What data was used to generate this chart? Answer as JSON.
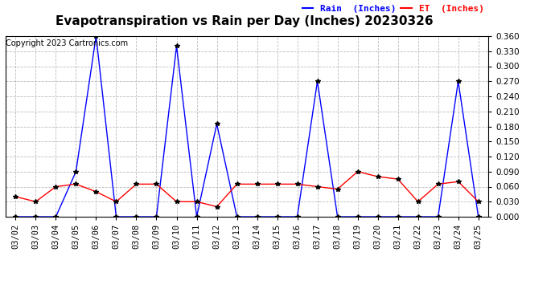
{
  "title": "Evapotranspiration vs Rain per Day (Inches) 20230326",
  "copyright": "Copyright 2023 Cartronics.com",
  "dates": [
    "03/02",
    "03/03",
    "03/04",
    "03/05",
    "03/06",
    "03/07",
    "03/08",
    "03/09",
    "03/10",
    "03/11",
    "03/12",
    "03/13",
    "03/14",
    "03/15",
    "03/16",
    "03/17",
    "03/18",
    "03/19",
    "03/20",
    "03/21",
    "03/22",
    "03/23",
    "03/24",
    "03/25"
  ],
  "rain": [
    0.0,
    0.0,
    0.0,
    0.09,
    0.36,
    0.0,
    0.0,
    0.0,
    0.34,
    0.0,
    0.185,
    0.0,
    0.0,
    0.0,
    0.0,
    0.27,
    0.0,
    0.0,
    0.0,
    0.0,
    0.0,
    0.0,
    0.27,
    0.0
  ],
  "et": [
    0.04,
    0.03,
    0.06,
    0.065,
    0.05,
    0.03,
    0.065,
    0.065,
    0.03,
    0.03,
    0.02,
    0.065,
    0.065,
    0.065,
    0.065,
    0.06,
    0.055,
    0.09,
    0.08,
    0.075,
    0.03,
    0.065,
    0.07,
    0.03
  ],
  "rain_color": "#0000ff",
  "et_color": "#ff0000",
  "marker_color": "#000000",
  "ylim": [
    0.0,
    0.36
  ],
  "yticks": [
    0.0,
    0.03,
    0.06,
    0.09,
    0.12,
    0.15,
    0.18,
    0.21,
    0.24,
    0.27,
    0.3,
    0.33,
    0.36
  ],
  "background_color": "#ffffff",
  "grid_color": "#bbbbbb",
  "title_fontsize": 11,
  "tick_fontsize": 7.5,
  "copyright_fontsize": 7,
  "legend_rain": "Rain  (Inches)",
  "legend_et": "ET  (Inches)",
  "legend_rain_color": "#0000ff",
  "legend_et_color": "#ff0000",
  "legend_fontsize": 8
}
